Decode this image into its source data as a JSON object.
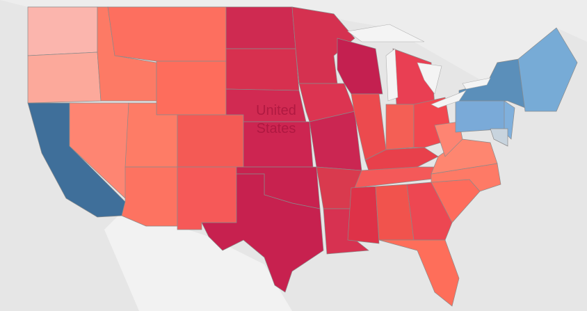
{
  "map": {
    "country_label": "United States"
  }
}
